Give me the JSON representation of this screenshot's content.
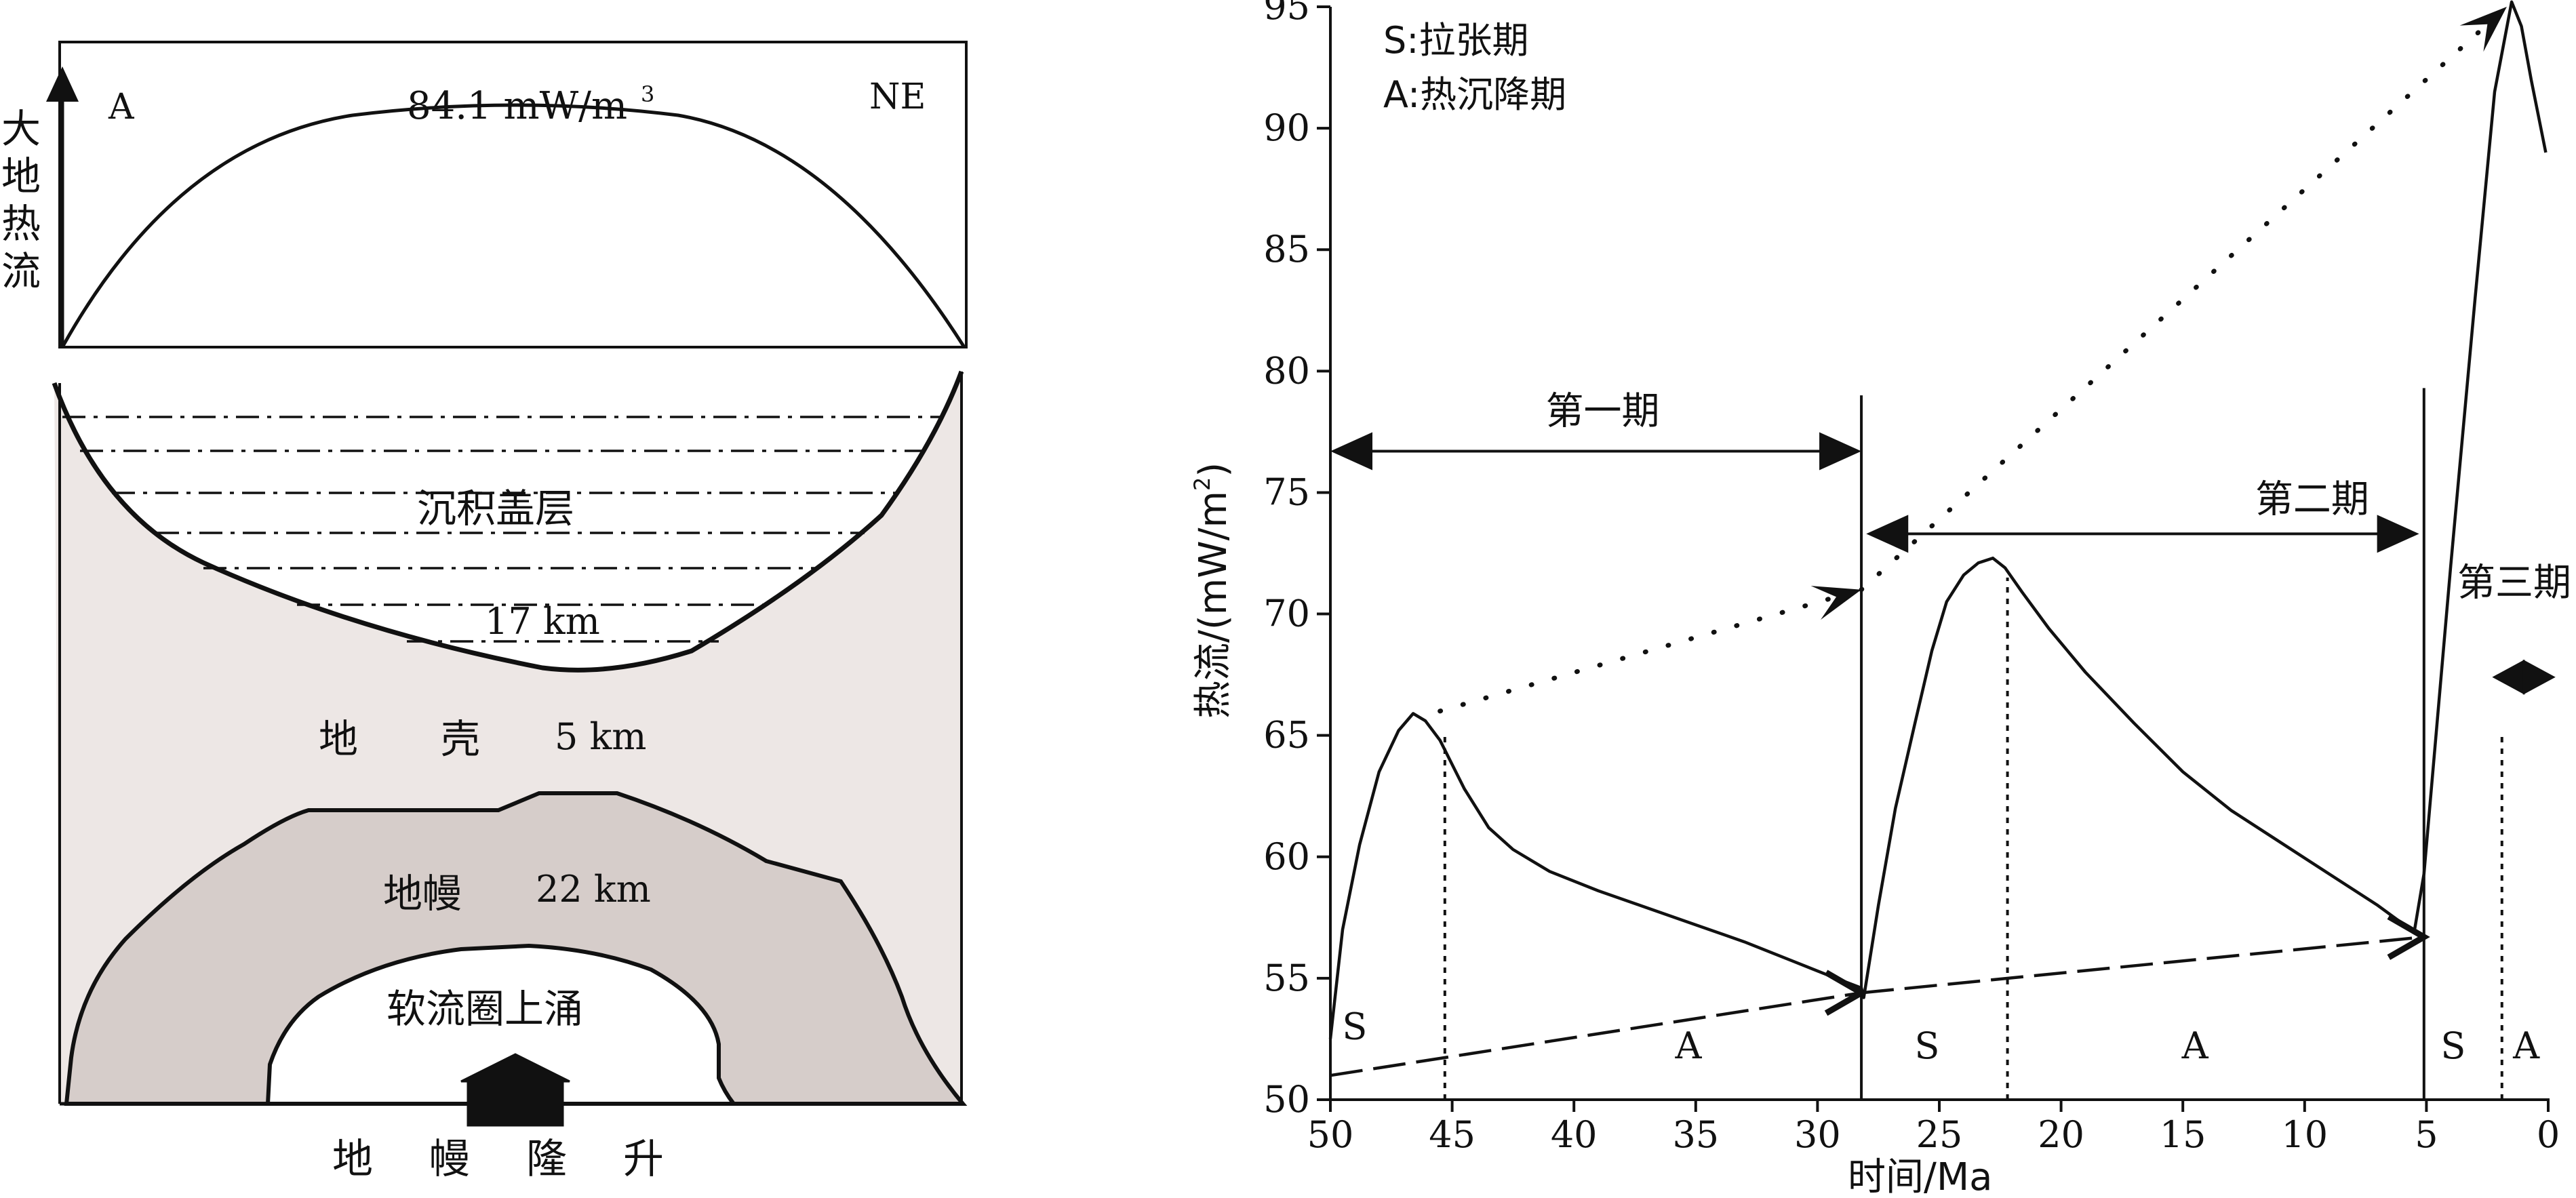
{
  "left_panel": {
    "heat_flow_profile": {
      "vertical_label": [
        "大",
        "地",
        "热",
        "流"
      ],
      "end_left": "A",
      "end_right": "NE",
      "peak_value": "84.1 mW/m",
      "peak_unit_sup": "3"
    },
    "cross_section": {
      "sediment_label": "沉积盖层",
      "sediment_thickness": "17 km",
      "crust_label_1": "地",
      "crust_label_2": "壳",
      "crust_thickness": "5 km",
      "mantle_label": "地幔",
      "mantle_thickness": "22 km",
      "asthenosphere_label": "软流圈上涌",
      "bottom_caption": [
        "地",
        "幔",
        "隆",
        "升"
      ]
    }
  },
  "chart_data": {
    "type": "line",
    "legend": [
      "S:拉张期",
      "A:热沉降期"
    ],
    "xlabel": "时间/Ma",
    "ylabel": "热流/(mW/m",
    "ylabel_sup": "2",
    "ylabel_close": ")",
    "xlim": [
      50,
      0
    ],
    "ylim": [
      50,
      95
    ],
    "xticks": [
      50,
      45,
      40,
      35,
      30,
      25,
      20,
      15,
      10,
      5,
      0
    ],
    "yticks": [
      50,
      55,
      60,
      65,
      70,
      75,
      80,
      85,
      90,
      95
    ],
    "curve": [
      [
        50,
        52.5
      ],
      [
        49.5,
        57
      ],
      [
        48.8,
        60.5
      ],
      [
        48,
        63.5
      ],
      [
        47.2,
        65.2
      ],
      [
        46.6,
        65.9
      ],
      [
        46.1,
        65.6
      ],
      [
        45.5,
        64.8
      ],
      [
        44.5,
        62.8
      ],
      [
        43.5,
        61.2
      ],
      [
        42.5,
        60.3
      ],
      [
        41,
        59.4
      ],
      [
        39,
        58.6
      ],
      [
        37,
        57.9
      ],
      [
        35,
        57.2
      ],
      [
        33,
        56.5
      ],
      [
        31,
        55.7
      ],
      [
        29.5,
        55.1
      ],
      [
        28.2,
        54.6
      ],
      [
        28.1,
        54.2
      ],
      [
        27.5,
        58
      ],
      [
        26.8,
        62
      ],
      [
        26,
        65.5
      ],
      [
        25.3,
        68.5
      ],
      [
        24.7,
        70.5
      ],
      [
        24,
        71.6
      ],
      [
        23.4,
        72.1
      ],
      [
        22.8,
        72.3
      ],
      [
        22.3,
        71.9
      ],
      [
        21.6,
        70.9
      ],
      [
        20.5,
        69.4
      ],
      [
        19,
        67.6
      ],
      [
        17,
        65.5
      ],
      [
        15,
        63.5
      ],
      [
        13,
        61.9
      ],
      [
        11,
        60.6
      ],
      [
        9,
        59.3
      ],
      [
        7,
        58.0
      ],
      [
        5.5,
        56.9
      ],
      [
        5.1,
        59.3
      ],
      [
        4,
        72
      ],
      [
        3,
        83
      ],
      [
        2.2,
        91.5
      ],
      [
        1.5,
        95.2
      ],
      [
        1.1,
        94.2
      ],
      [
        0.7,
        92
      ],
      [
        0.1,
        89
      ]
    ],
    "dashed_trend": [
      [
        50,
        51.0
      ],
      [
        28.2,
        54.4
      ],
      [
        5.1,
        56.7
      ]
    ],
    "dotted_trend": [
      [
        45.5,
        66.0
      ],
      [
        28.2,
        71.0
      ],
      [
        1.7,
        95.0
      ]
    ],
    "period_dividers_x": [
      28.2,
      5.1
    ],
    "peak_marker_lines": [
      {
        "x": 45.3,
        "y_top": 65.0
      },
      {
        "x": 22.2,
        "y_top": 71.5
      },
      {
        "x": 1.9,
        "y_top": 65.0
      }
    ],
    "periods": [
      {
        "label": "第一期",
        "x_from": 50,
        "x_to": 28.2,
        "y": 76.7
      },
      {
        "label": "第二期",
        "x_from": 28,
        "x_to": 5.3,
        "y": 73.3
      },
      {
        "label": "第三期",
        "x_from": 2.3,
        "x_to": -0.3,
        "y": 67.4
      }
    ],
    "phase_labels": [
      {
        "text": "S",
        "x": 49,
        "y": 52.5
      },
      {
        "text": "A",
        "x": 35.3,
        "y": 51.7
      },
      {
        "text": "S",
        "x": 25.5,
        "y": 51.7
      },
      {
        "text": "A",
        "x": 14.5,
        "y": 51.7
      },
      {
        "text": "S",
        "x": 3.9,
        "y": 51.7
      },
      {
        "text": "A",
        "x": 0.9,
        "y": 51.7
      }
    ]
  }
}
